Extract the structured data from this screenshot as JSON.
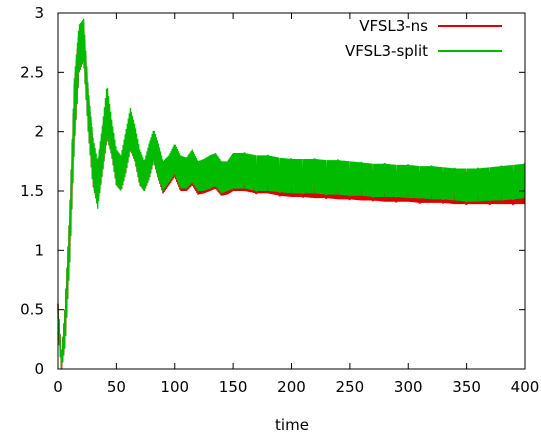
{
  "chart_data": {
    "type": "line",
    "title": "",
    "xlabel": "time",
    "ylabel": "",
    "xlim": [
      0,
      400
    ],
    "ylim": [
      0,
      3
    ],
    "xticks": [
      0,
      50,
      100,
      150,
      200,
      250,
      300,
      350,
      400
    ],
    "yticks": [
      0,
      0.5,
      1,
      1.5,
      2,
      2.5,
      3
    ],
    "ytick_labels": [
      "0",
      "0.5",
      "1",
      "1.5",
      "2",
      "2.5",
      "3"
    ],
    "grid": false,
    "legend_position": "top-right",
    "series": [
      {
        "name": "VFSL3-ns",
        "color": "#dd0000",
        "x": [
          0,
          3,
          6,
          10,
          14,
          18,
          22,
          26,
          30,
          34,
          38,
          42,
          46,
          50,
          54,
          58,
          62,
          66,
          70,
          74,
          78,
          82,
          86,
          90,
          95,
          100,
          105,
          110,
          115,
          120,
          125,
          130,
          135,
          140,
          145,
          150,
          160,
          170,
          180,
          190,
          200,
          210,
          220,
          230,
          240,
          250,
          260,
          270,
          280,
          290,
          300,
          310,
          320,
          330,
          340,
          350,
          360,
          370,
          380,
          390,
          400
        ],
        "low": [
          0.35,
          0.0,
          0.2,
          0.9,
          1.9,
          2.5,
          2.6,
          2.0,
          1.55,
          1.4,
          1.65,
          1.95,
          1.8,
          1.55,
          1.5,
          1.65,
          1.85,
          1.75,
          1.55,
          1.5,
          1.6,
          1.75,
          1.6,
          1.48,
          1.55,
          1.62,
          1.5,
          1.5,
          1.55,
          1.47,
          1.48,
          1.5,
          1.52,
          1.46,
          1.47,
          1.5,
          1.5,
          1.48,
          1.48,
          1.46,
          1.45,
          1.45,
          1.44,
          1.44,
          1.43,
          1.43,
          1.42,
          1.42,
          1.41,
          1.41,
          1.41,
          1.4,
          1.4,
          1.4,
          1.39,
          1.39,
          1.39,
          1.39,
          1.39,
          1.39,
          1.39
        ],
        "high": [
          0.55,
          0.1,
          0.5,
          1.3,
          2.4,
          2.85,
          2.9,
          2.3,
          1.9,
          1.7,
          2.0,
          2.3,
          2.05,
          1.8,
          1.75,
          1.95,
          2.15,
          2.0,
          1.8,
          1.72,
          1.85,
          1.98,
          1.85,
          1.7,
          1.76,
          1.86,
          1.75,
          1.72,
          1.8,
          1.7,
          1.72,
          1.74,
          1.76,
          1.7,
          1.7,
          1.74,
          1.74,
          1.72,
          1.72,
          1.7,
          1.7,
          1.7,
          1.69,
          1.69,
          1.68,
          1.68,
          1.67,
          1.67,
          1.67,
          1.66,
          1.66,
          1.66,
          1.66,
          1.66,
          1.66,
          1.66,
          1.66,
          1.66,
          1.66,
          1.66,
          1.66
        ]
      },
      {
        "name": "VFSL3-split",
        "color": "#00bb00",
        "x": [
          0,
          3,
          6,
          10,
          14,
          18,
          22,
          26,
          30,
          34,
          38,
          42,
          46,
          50,
          54,
          58,
          62,
          66,
          70,
          74,
          78,
          82,
          86,
          90,
          95,
          100,
          105,
          110,
          115,
          120,
          125,
          130,
          135,
          140,
          145,
          150,
          160,
          170,
          180,
          190,
          200,
          210,
          220,
          230,
          240,
          250,
          260,
          270,
          280,
          290,
          300,
          310,
          320,
          330,
          340,
          350,
          360,
          370,
          380,
          390,
          400
        ],
        "low": [
          0.35,
          0.0,
          0.2,
          0.9,
          1.9,
          2.5,
          2.6,
          2.0,
          1.55,
          1.35,
          1.65,
          1.95,
          1.8,
          1.55,
          1.5,
          1.65,
          1.85,
          1.75,
          1.55,
          1.5,
          1.6,
          1.75,
          1.6,
          1.5,
          1.57,
          1.64,
          1.52,
          1.52,
          1.57,
          1.5,
          1.5,
          1.52,
          1.54,
          1.48,
          1.5,
          1.52,
          1.52,
          1.5,
          1.5,
          1.49,
          1.48,
          1.48,
          1.48,
          1.47,
          1.47,
          1.46,
          1.46,
          1.45,
          1.45,
          1.45,
          1.44,
          1.44,
          1.43,
          1.43,
          1.42,
          1.41,
          1.41,
          1.42,
          1.42,
          1.43,
          1.44
        ],
        "high": [
          0.55,
          0.1,
          0.5,
          1.3,
          2.45,
          2.9,
          2.95,
          2.35,
          1.95,
          1.75,
          2.05,
          2.4,
          2.1,
          1.85,
          1.8,
          2.0,
          2.2,
          2.05,
          1.85,
          1.75,
          1.9,
          2.02,
          1.9,
          1.75,
          1.8,
          1.9,
          1.8,
          1.78,
          1.85,
          1.75,
          1.77,
          1.8,
          1.82,
          1.75,
          1.75,
          1.82,
          1.82,
          1.8,
          1.8,
          1.78,
          1.77,
          1.77,
          1.77,
          1.76,
          1.76,
          1.75,
          1.74,
          1.73,
          1.73,
          1.72,
          1.72,
          1.71,
          1.71,
          1.7,
          1.69,
          1.69,
          1.69,
          1.7,
          1.71,
          1.72,
          1.73
        ]
      }
    ]
  }
}
